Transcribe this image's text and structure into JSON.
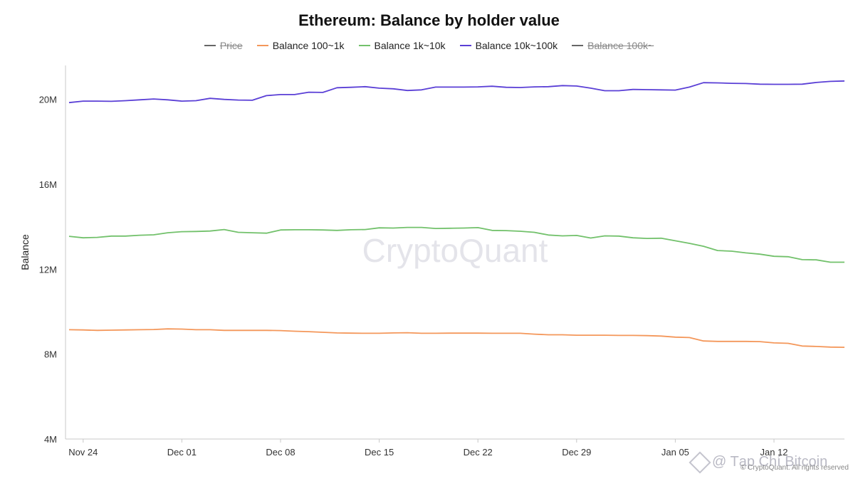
{
  "chart_data": {
    "type": "line",
    "title": "Ethereum: Balance by holder value",
    "ylabel": "Balance",
    "xlabel": "",
    "watermark": "CryptoQuant",
    "copyright": "© CryptoQuant. All rights reserved",
    "brand_overlay": "@ Tạp Chí Bitcoin",
    "ylim": [
      4000000,
      21600000
    ],
    "yticks": [
      {
        "value": 4000000,
        "label": "4M"
      },
      {
        "value": 8000000,
        "label": "8M"
      },
      {
        "value": 12000000,
        "label": "12M"
      },
      {
        "value": 16000000,
        "label": "16M"
      },
      {
        "value": 20000000,
        "label": "20M"
      }
    ],
    "xticks": [
      {
        "index": 1,
        "label": "Nov 24"
      },
      {
        "index": 8,
        "label": "Dec 01"
      },
      {
        "index": 15,
        "label": "Dec 08"
      },
      {
        "index": 22,
        "label": "Dec 15"
      },
      {
        "index": 29,
        "label": "Dec 22"
      },
      {
        "index": 36,
        "label": "Dec 29"
      },
      {
        "index": 43,
        "label": "Jan 05"
      },
      {
        "index": 50,
        "label": "Jan 12"
      }
    ],
    "x": [
      "Nov 23",
      "Nov 24",
      "Nov 25",
      "Nov 26",
      "Nov 27",
      "Nov 28",
      "Nov 29",
      "Nov 30",
      "Dec 01",
      "Dec 02",
      "Dec 03",
      "Dec 04",
      "Dec 05",
      "Dec 06",
      "Dec 07",
      "Dec 08",
      "Dec 09",
      "Dec 10",
      "Dec 11",
      "Dec 12",
      "Dec 13",
      "Dec 14",
      "Dec 15",
      "Dec 16",
      "Dec 17",
      "Dec 18",
      "Dec 19",
      "Dec 20",
      "Dec 21",
      "Dec 22",
      "Dec 23",
      "Dec 24",
      "Dec 25",
      "Dec 26",
      "Dec 27",
      "Dec 28",
      "Dec 29",
      "Dec 30",
      "Dec 31",
      "Jan 01",
      "Jan 02",
      "Jan 03",
      "Jan 04",
      "Jan 05",
      "Jan 06",
      "Jan 07",
      "Jan 08",
      "Jan 09",
      "Jan 10",
      "Jan 11",
      "Jan 12",
      "Jan 13",
      "Jan 14",
      "Jan 15",
      "Jan 16",
      "Jan 17"
    ],
    "legend": [
      {
        "name": "Price",
        "color": "#666666",
        "hidden": true
      },
      {
        "name": "Balance 100~1k",
        "color": "#f4975a",
        "hidden": false
      },
      {
        "name": "Balance 1k~10k",
        "color": "#72c16b",
        "hidden": false
      },
      {
        "name": "Balance 10k~100k",
        "color": "#5a3fd6",
        "hidden": false
      },
      {
        "name": "Balance 100k~",
        "color": "#666666",
        "hidden": true
      }
    ],
    "series": [
      {
        "name": "Balance 10k~100k",
        "color": "#5a3fd6",
        "values": [
          19850000,
          19920000,
          19920000,
          19910000,
          19940000,
          19980000,
          20020000,
          19980000,
          19920000,
          19940000,
          20050000,
          20000000,
          19970000,
          19960000,
          20180000,
          20230000,
          20230000,
          20340000,
          20330000,
          20550000,
          20570000,
          20600000,
          20530000,
          20500000,
          20420000,
          20450000,
          20580000,
          20580000,
          20580000,
          20590000,
          20620000,
          20570000,
          20560000,
          20590000,
          20600000,
          20650000,
          20630000,
          20530000,
          20410000,
          20410000,
          20470000,
          20460000,
          20450000,
          20440000,
          20580000,
          20790000,
          20780000,
          20760000,
          20750000,
          20720000,
          20710000,
          20710000,
          20720000,
          20800000,
          20850000,
          20870000
        ]
      },
      {
        "name": "Balance 1k~10k",
        "color": "#72c16b",
        "values": [
          13550000,
          13480000,
          13500000,
          13560000,
          13560000,
          13600000,
          13620000,
          13720000,
          13770000,
          13780000,
          13800000,
          13870000,
          13740000,
          13720000,
          13700000,
          13850000,
          13860000,
          13860000,
          13850000,
          13830000,
          13860000,
          13870000,
          13950000,
          13940000,
          13970000,
          13970000,
          13920000,
          13930000,
          13940000,
          13960000,
          13830000,
          13820000,
          13790000,
          13740000,
          13610000,
          13570000,
          13590000,
          13470000,
          13570000,
          13560000,
          13480000,
          13450000,
          13460000,
          13340000,
          13220000,
          13080000,
          12880000,
          12850000,
          12770000,
          12710000,
          12610000,
          12590000,
          12450000,
          12440000,
          12330000,
          12330000
        ]
      },
      {
        "name": "Balance 100~1k",
        "color": "#f4975a",
        "values": [
          9150000,
          9140000,
          9120000,
          9130000,
          9140000,
          9150000,
          9160000,
          9190000,
          9180000,
          9150000,
          9150000,
          9120000,
          9120000,
          9120000,
          9120000,
          9110000,
          9080000,
          9060000,
          9030000,
          9000000,
          8990000,
          8980000,
          8980000,
          9000000,
          9010000,
          8980000,
          8980000,
          8990000,
          8990000,
          8990000,
          8980000,
          8980000,
          8980000,
          8940000,
          8910000,
          8910000,
          8890000,
          8890000,
          8890000,
          8880000,
          8880000,
          8870000,
          8850000,
          8800000,
          8780000,
          8620000,
          8600000,
          8600000,
          8600000,
          8590000,
          8530000,
          8510000,
          8380000,
          8360000,
          8330000,
          8320000
        ]
      }
    ]
  }
}
